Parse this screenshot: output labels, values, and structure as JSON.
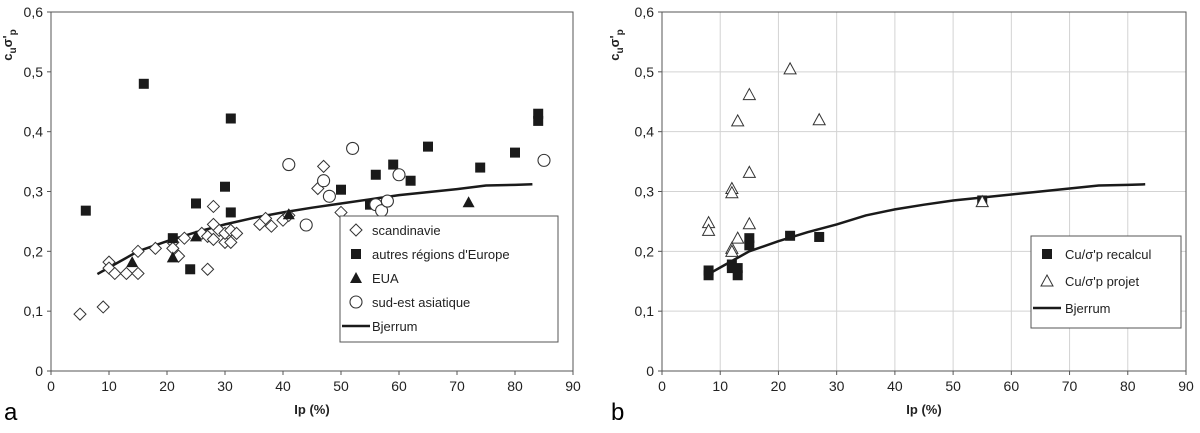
{
  "chart_data": [
    {
      "type": "scatter",
      "panel_label": "a",
      "title": "",
      "xlabel": "Ip (%)",
      "ylabel_main": "c",
      "ylabel_sub": "u",
      "ylabel_sigma": "σ'",
      "ylabel_p": "p",
      "xlim": [
        0,
        90
      ],
      "ylim": [
        0,
        0.6
      ],
      "xticks": [
        "0",
        "10",
        "20",
        "30",
        "40",
        "50",
        "60",
        "70",
        "80",
        "90"
      ],
      "yticks": [
        "0",
        "0,1",
        "0,2",
        "0,3",
        "0,4",
        "0,5",
        "0,6"
      ],
      "grid": false,
      "legend_position": "bottom-right",
      "series": [
        {
          "name": "scandinavie",
          "marker": "diamond-open",
          "points": [
            [
              5,
              0.095
            ],
            [
              9,
              0.107
            ],
            [
              10,
              0.182
            ],
            [
              10,
              0.172
            ],
            [
              11,
              0.163
            ],
            [
              13,
              0.163
            ],
            [
              15,
              0.163
            ],
            [
              15,
              0.2
            ],
            [
              18,
              0.205
            ],
            [
              21,
              0.215
            ],
            [
              21,
              0.205
            ],
            [
              22,
              0.192
            ],
            [
              23,
              0.222
            ],
            [
              26,
              0.23
            ],
            [
              27,
              0.225
            ],
            [
              27,
              0.17
            ],
            [
              28,
              0.275
            ],
            [
              28,
              0.245
            ],
            [
              28,
              0.22
            ],
            [
              29,
              0.235
            ],
            [
              30,
              0.215
            ],
            [
              30,
              0.23
            ],
            [
              31,
              0.235
            ],
            [
              31,
              0.215
            ],
            [
              32,
              0.23
            ],
            [
              36,
              0.245
            ],
            [
              37,
              0.255
            ],
            [
              38,
              0.242
            ],
            [
              40,
              0.252
            ],
            [
              41,
              0.26
            ],
            [
              46,
              0.305
            ],
            [
              47,
              0.342
            ],
            [
              50,
              0.265
            ]
          ]
        },
        {
          "name": "autres régions d'Europe",
          "marker": "square-filled",
          "points": [
            [
              6,
              0.268
            ],
            [
              16,
              0.48
            ],
            [
              21,
              0.222
            ],
            [
              24,
              0.17
            ],
            [
              25,
              0.28
            ],
            [
              30,
              0.308
            ],
            [
              31,
              0.422
            ],
            [
              31,
              0.265
            ],
            [
              50,
              0.303
            ],
            [
              55,
              0.278
            ],
            [
              56,
              0.328
            ],
            [
              59,
              0.345
            ],
            [
              62,
              0.318
            ],
            [
              65,
              0.375
            ],
            [
              74,
              0.34
            ],
            [
              80,
              0.365
            ],
            [
              84,
              0.43
            ],
            [
              84,
              0.418
            ]
          ]
        },
        {
          "name": "EUA",
          "marker": "triangle-filled",
          "points": [
            [
              14,
              0.182
            ],
            [
              21,
              0.19
            ],
            [
              25,
              0.225
            ],
            [
              41,
              0.262
            ],
            [
              72,
              0.282
            ]
          ]
        },
        {
          "name": "sud-est asiatique",
          "marker": "circle-open",
          "points": [
            [
              41,
              0.345
            ],
            [
              44,
              0.244
            ],
            [
              47,
              0.318
            ],
            [
              48,
              0.292
            ],
            [
              52,
              0.372
            ],
            [
              56,
              0.278
            ],
            [
              57,
              0.268
            ],
            [
              58,
              0.284
            ],
            [
              60,
              0.328
            ],
            [
              85,
              0.352
            ]
          ]
        },
        {
          "name": "Bjerrum",
          "marker": "line",
          "points": [
            [
              8,
              0.162
            ],
            [
              10,
              0.173
            ],
            [
              15,
              0.2
            ],
            [
              20,
              0.217
            ],
            [
              25,
              0.232
            ],
            [
              30,
              0.245
            ],
            [
              35,
              0.256
            ],
            [
              40,
              0.265
            ],
            [
              45,
              0.273
            ],
            [
              50,
              0.28
            ],
            [
              55,
              0.287
            ],
            [
              60,
              0.294
            ],
            [
              65,
              0.299
            ],
            [
              70,
              0.304
            ],
            [
              75,
              0.31
            ],
            [
              80,
              0.311
            ],
            [
              83,
              0.312
            ]
          ]
        }
      ]
    },
    {
      "type": "scatter",
      "panel_label": "b",
      "title": "",
      "xlabel": "Ip (%)",
      "ylabel_main": "c",
      "ylabel_sub": "u",
      "ylabel_sigma": "σ'",
      "ylabel_p": "p",
      "xlim": [
        0,
        90
      ],
      "ylim": [
        0,
        0.6
      ],
      "xticks": [
        "0",
        "10",
        "20",
        "30",
        "40",
        "50",
        "60",
        "70",
        "80",
        "90"
      ],
      "yticks": [
        "0",
        "0,1",
        "0,2",
        "0,3",
        "0,4",
        "0,5",
        "0,6"
      ],
      "grid": true,
      "legend_position": "bottom-right",
      "series": [
        {
          "name": "Cu/σ'p recalcul",
          "marker": "square-filled",
          "points": [
            [
              8,
              0.16
            ],
            [
              8,
              0.168
            ],
            [
              12,
              0.172
            ],
            [
              12,
              0.178
            ],
            [
              13,
              0.16
            ],
            [
              13,
              0.172
            ],
            [
              15,
              0.21
            ],
            [
              15,
              0.222
            ],
            [
              22,
              0.226
            ],
            [
              27,
              0.224
            ],
            [
              55,
              0.285
            ]
          ]
        },
        {
          "name": "Cu/σ'p projet",
          "marker": "triangle-open",
          "points": [
            [
              8,
              0.248
            ],
            [
              8,
              0.235
            ],
            [
              12,
              0.305
            ],
            [
              12,
              0.298
            ],
            [
              12,
              0.205
            ],
            [
              12,
              0.2
            ],
            [
              13,
              0.222
            ],
            [
              13,
              0.418
            ],
            [
              15,
              0.462
            ],
            [
              15,
              0.332
            ],
            [
              15,
              0.246
            ],
            [
              22,
              0.505
            ],
            [
              27,
              0.42
            ],
            [
              55,
              0.283
            ]
          ]
        },
        {
          "name": "Bjerrum",
          "marker": "line",
          "points": [
            [
              8,
              0.162
            ],
            [
              10,
              0.173
            ],
            [
              15,
              0.2
            ],
            [
              20,
              0.217
            ],
            [
              25,
              0.232
            ],
            [
              30,
              0.245
            ],
            [
              35,
              0.26
            ],
            [
              40,
              0.27
            ],
            [
              45,
              0.278
            ],
            [
              50,
              0.285
            ],
            [
              55,
              0.29
            ],
            [
              60,
              0.295
            ],
            [
              65,
              0.3
            ],
            [
              70,
              0.305
            ],
            [
              75,
              0.31
            ],
            [
              80,
              0.311
            ],
            [
              83,
              0.312
            ]
          ]
        }
      ]
    }
  ]
}
